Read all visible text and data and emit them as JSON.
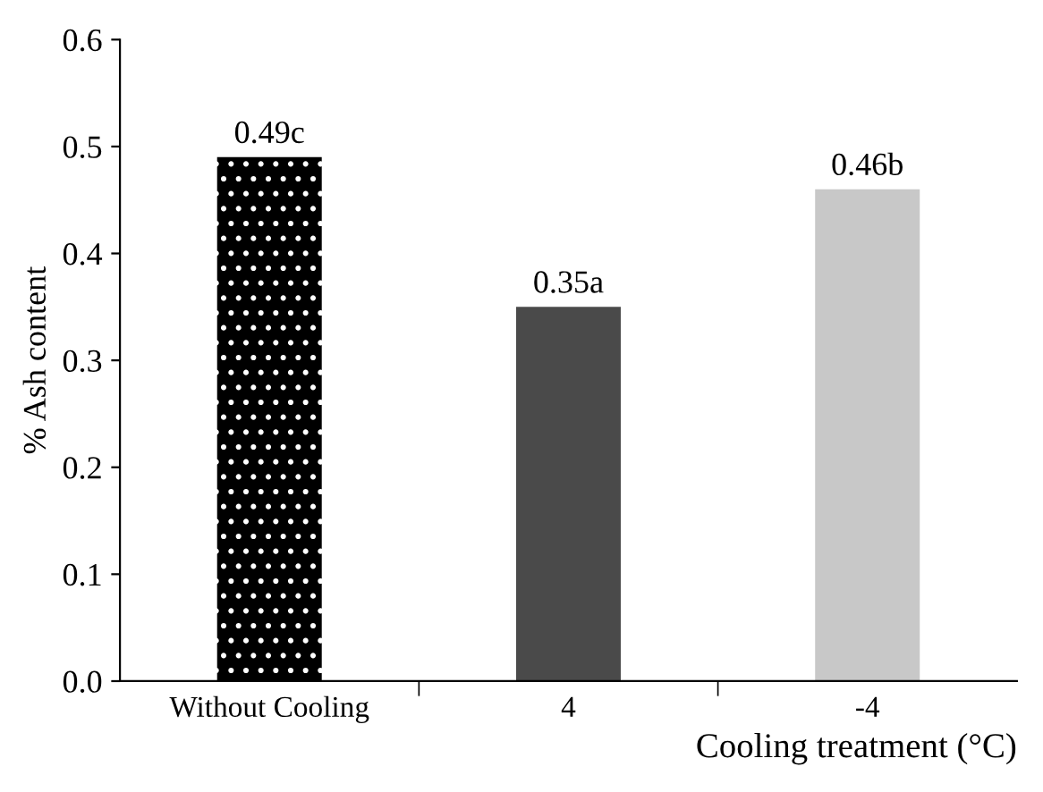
{
  "chart_data": {
    "type": "bar",
    "xlabel": "Cooling treatment (°C)",
    "ylabel": "% Ash content",
    "categories": [
      "Without Cooling",
      "4",
      "-4"
    ],
    "values": [
      0.49,
      0.35,
      0.46
    ],
    "colors": [
      "#000000",
      "#4a4a4a",
      "#c8c8c8"
    ],
    "value_labels": [
      "0.49c",
      "0.35a",
      "0.46b"
    ],
    "ylim": [
      0,
      0.6
    ],
    "yticks": [
      {
        "value": 0,
        "label": "0.0"
      },
      {
        "value": 0.1,
        "label": "0.1"
      },
      {
        "value": 0.2,
        "label": "0.2"
      },
      {
        "value": 0.3,
        "label": "0.3"
      },
      {
        "value": 0.4,
        "label": "0.4"
      },
      {
        "value": 0.5,
        "label": "0.5"
      },
      {
        "value": 0.6,
        "label": "0.6"
      }
    ],
    "grid": false,
    "legend": false
  }
}
